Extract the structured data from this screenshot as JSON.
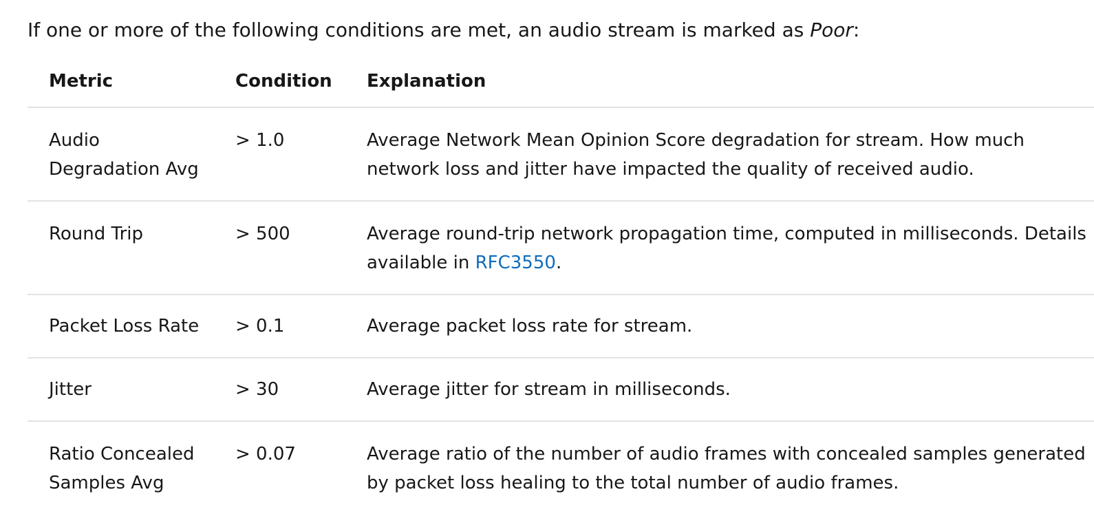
{
  "intro": {
    "prefix": "If one or more of the following conditions are met, an audio stream is marked as ",
    "emphasis": "Poor",
    "suffix": ":"
  },
  "table": {
    "headers": {
      "metric": "Metric",
      "condition": "Condition",
      "explanation": "Explanation"
    },
    "rows": [
      {
        "metric": "Audio Degradation Avg",
        "condition": "> 1.0",
        "explanation": "Average Network Mean Opinion Score degradation for stream. How much network loss and jitter have impacted the quality of received audio."
      },
      {
        "metric": "Round Trip",
        "condition": "> 500",
        "explanation_prefix": "Average round-trip network propagation time, computed in milliseconds. Details available in ",
        "explanation_link": "RFC3550",
        "explanation_suffix": "."
      },
      {
        "metric": "Packet Loss Rate",
        "condition": "> 0.1",
        "explanation": "Average packet loss rate for stream."
      },
      {
        "metric": "Jitter",
        "condition": "> 30",
        "explanation": "Average jitter for stream in milliseconds."
      },
      {
        "metric": "Ratio Concealed Samples Avg",
        "condition": "> 0.07",
        "explanation": "Average ratio of the number of audio frames with concealed samples generated by packet loss healing to the total number of audio frames."
      }
    ]
  },
  "colors": {
    "text": "#171717",
    "link": "#0f6cbd",
    "divider": "#e3e3e3"
  }
}
